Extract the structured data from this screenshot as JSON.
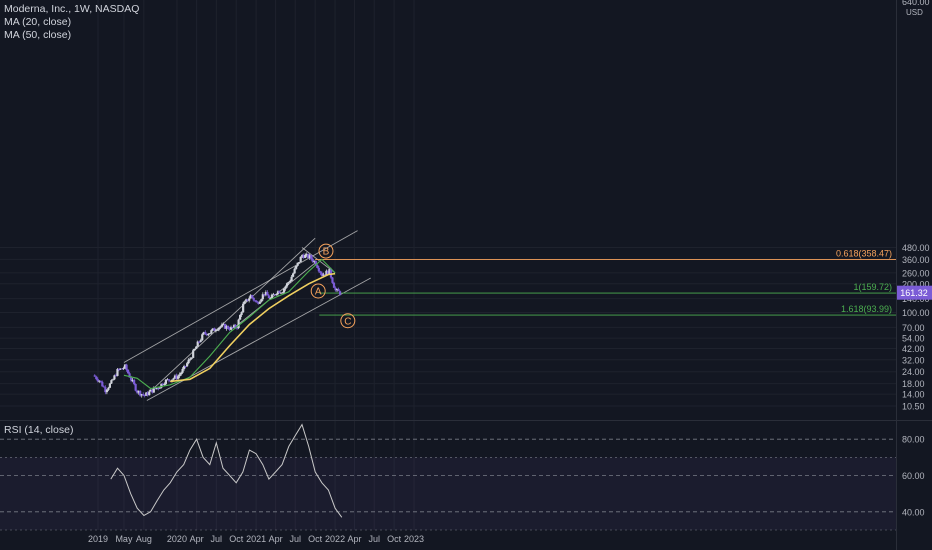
{
  "legend": {
    "title": "Moderna, Inc., 1W, NASDAQ",
    "ma20": "MA (20, close)",
    "ma50": "MA (50, close)",
    "rsi": "RSI (14, close)"
  },
  "colors": {
    "background": "#131722",
    "up_candle": "#d1d4dc",
    "down_candle": "#7b5cd6",
    "ma20": "#4caf50",
    "ma50": "#f0d060",
    "trendlines": "#c8c8c8",
    "fib_0618": "#f7a35c",
    "fib_levels": "#4caf50",
    "rsi_line": "#c8c8c8",
    "wave_labels": "#f7a35c",
    "price_tag": "#7b5cd6"
  },
  "chart_data": [
    {
      "type": "candlestick",
      "panel": "price",
      "scale": "log",
      "currency": "USD",
      "ylim": [
        10.5,
        640
      ],
      "y_ticks": [
        10.5,
        14,
        18,
        24,
        32,
        42,
        54,
        70,
        100,
        140,
        200,
        260,
        360,
        480
      ],
      "y_tick_labels": [
        "10.50",
        "14.00",
        "18.00",
        "24.00",
        "32.00",
        "42.00",
        "54.00",
        "70.00",
        "100.00",
        "140.00",
        "200.00",
        "260.00",
        "360.00",
        "480.00"
      ],
      "top_tick_label": "640.00",
      "x_ticks": [
        "2019",
        "May",
        "Aug",
        "2020",
        "Apr",
        "Jul",
        "Oct",
        "2021",
        "Apr",
        "Jul",
        "Oct",
        "2022",
        "Apr",
        "Jul",
        "Oct",
        "2023"
      ],
      "x_tick_dates": [
        "2019-01-01",
        "2019-05-01",
        "2019-08-01",
        "2020-01-01",
        "2020-04-01",
        "2020-07-01",
        "2020-10-01",
        "2021-01-01",
        "2021-04-01",
        "2021-07-01",
        "2021-10-01",
        "2022-01-01",
        "2022-04-01",
        "2022-07-01",
        "2022-10-01",
        "2023-01-01"
      ],
      "last_price": "161.32",
      "weekly_close": [
        {
          "date": "2018-12-10",
          "close": 22.0
        },
        {
          "date": "2019-01-07",
          "close": 19.5
        },
        {
          "date": "2019-02-04",
          "close": 15.5
        },
        {
          "date": "2019-03-04",
          "close": 18.5
        },
        {
          "date": "2019-04-01",
          "close": 24.5
        },
        {
          "date": "2019-05-06",
          "close": 27.0
        },
        {
          "date": "2019-06-03",
          "close": 20.0
        },
        {
          "date": "2019-07-01",
          "close": 15.0
        },
        {
          "date": "2019-08-05",
          "close": 13.5
        },
        {
          "date": "2019-09-02",
          "close": 15.0
        },
        {
          "date": "2019-10-07",
          "close": 16.5
        },
        {
          "date": "2019-11-04",
          "close": 19.0
        },
        {
          "date": "2019-12-02",
          "close": 20.0
        },
        {
          "date": "2020-01-06",
          "close": 21.5
        },
        {
          "date": "2020-02-03",
          "close": 26.0
        },
        {
          "date": "2020-03-02",
          "close": 33.0
        },
        {
          "date": "2020-04-06",
          "close": 47.0
        },
        {
          "date": "2020-05-04",
          "close": 60.0
        },
        {
          "date": "2020-06-01",
          "close": 62.0
        },
        {
          "date": "2020-07-06",
          "close": 70.0
        },
        {
          "date": "2020-08-03",
          "close": 72.0
        },
        {
          "date": "2020-09-07",
          "close": 68.0
        },
        {
          "date": "2020-10-05",
          "close": 72.0
        },
        {
          "date": "2020-11-02",
          "close": 120.0
        },
        {
          "date": "2020-12-07",
          "close": 150.0
        },
        {
          "date": "2021-01-04",
          "close": 125.0
        },
        {
          "date": "2021-02-08",
          "close": 160.0
        },
        {
          "date": "2021-03-08",
          "close": 140.0
        },
        {
          "date": "2021-04-05",
          "close": 165.0
        },
        {
          "date": "2021-05-03",
          "close": 170.0
        },
        {
          "date": "2021-06-07",
          "close": 220.0
        },
        {
          "date": "2021-07-05",
          "close": 300.0
        },
        {
          "date": "2021-08-02",
          "close": 400.0
        },
        {
          "date": "2021-09-06",
          "close": 380.0
        },
        {
          "date": "2021-10-04",
          "close": 330.0
        },
        {
          "date": "2021-11-01",
          "close": 250.0
        },
        {
          "date": "2021-12-06",
          "close": 270.0
        },
        {
          "date": "2022-01-03",
          "close": 170.0
        },
        {
          "date": "2022-01-24",
          "close": 161.32
        }
      ]
    },
    {
      "type": "line",
      "panel": "price",
      "series": [
        {
          "name": "MA (20, close)",
          "x": [
            "2019-05-01",
            "2019-07-01",
            "2019-09-01",
            "2019-12-01",
            "2020-03-01",
            "2020-06-01",
            "2020-09-01",
            "2020-12-01",
            "2021-03-01",
            "2021-06-01",
            "2021-09-01",
            "2021-11-01",
            "2022-01-01"
          ],
          "values": [
            22.0,
            20.5,
            16.0,
            17.5,
            21.0,
            35.0,
            62.0,
            90.0,
            135.0,
            165.0,
            270.0,
            360.0,
            260.0
          ]
        },
        {
          "name": "MA (50, close)",
          "x": [
            "2019-12-01",
            "2020-03-01",
            "2020-06-01",
            "2020-09-01",
            "2020-12-01",
            "2021-03-01",
            "2021-06-01",
            "2021-09-01",
            "2021-12-01",
            "2022-01-01"
          ],
          "values": [
            19.0,
            20.0,
            26.0,
            45.0,
            75.0,
            110.0,
            150.0,
            200.0,
            250.0,
            255.0
          ]
        }
      ]
    },
    {
      "type": "annotations",
      "panel": "price",
      "fib_levels": [
        {
          "label": "0.618(358.47)",
          "value": 358.47
        },
        {
          "label": "1(159.72)",
          "value": 159.72
        },
        {
          "label": "1.618(93.99)",
          "value": 93.99
        }
      ],
      "wave_labels": [
        {
          "label": "A",
          "date": "2021-10-15",
          "value": 168.0
        },
        {
          "label": "B",
          "date": "2021-11-20",
          "value": 440.0
        },
        {
          "label": "C",
          "date": "2022-03-01",
          "value": 82.0
        }
      ]
    },
    {
      "type": "line",
      "panel": "rsi",
      "ylim": [
        30,
        90
      ],
      "y_ticks": [
        40,
        60,
        80
      ],
      "y_tick_labels": [
        "40.00",
        "60.00",
        "80.00"
      ],
      "series": [
        {
          "name": "RSI (14, close)",
          "x": [
            "2019-03-01",
            "2019-04-01",
            "2019-05-01",
            "2019-06-01",
            "2019-07-01",
            "2019-08-01",
            "2019-09-01",
            "2019-10-01",
            "2019-11-01",
            "2019-12-01",
            "2020-01-01",
            "2020-02-01",
            "2020-03-01",
            "2020-04-01",
            "2020-05-01",
            "2020-06-01",
            "2020-07-01",
            "2020-08-01",
            "2020-09-01",
            "2020-10-01",
            "2020-11-01",
            "2020-12-01",
            "2021-01-01",
            "2021-02-01",
            "2021-03-01",
            "2021-04-01",
            "2021-05-01",
            "2021-06-01",
            "2021-07-01",
            "2021-08-01",
            "2021-09-01",
            "2021-10-01",
            "2021-11-01",
            "2021-12-01",
            "2022-01-01",
            "2022-02-01"
          ],
          "values": [
            58,
            64,
            60,
            50,
            42,
            38,
            40,
            46,
            52,
            56,
            62,
            66,
            74,
            80,
            70,
            66,
            78,
            64,
            60,
            56,
            62,
            74,
            72,
            66,
            58,
            62,
            66,
            76,
            82,
            88,
            76,
            62,
            56,
            52,
            42,
            37
          ]
        }
      ]
    }
  ]
}
